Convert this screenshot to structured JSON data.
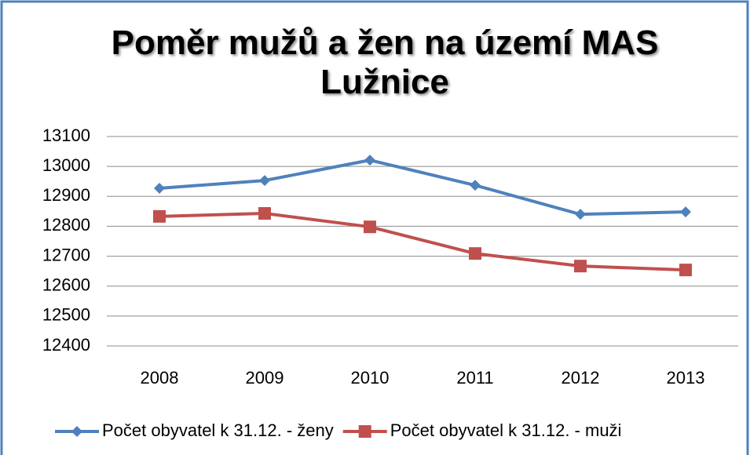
{
  "chart_data": {
    "type": "line",
    "title": "Poměr mužů a žen na území MAS Lužnice",
    "categories": [
      "2008",
      "2009",
      "2010",
      "2011",
      "2012",
      "2013"
    ],
    "series": [
      {
        "name": "Počet obyvatel k 31.12. - ženy",
        "color": "#4f81bd",
        "marker": "diamond",
        "values": [
          12927,
          12953,
          13021,
          12937,
          12840,
          12848
        ]
      },
      {
        "name": "Počet obyvatel k 31.12. - muži",
        "color": "#c0504d",
        "marker": "square",
        "values": [
          12833,
          12843,
          12798,
          12709,
          12667,
          12654
        ]
      }
    ],
    "ylim": [
      12400,
      13100
    ],
    "yticks": [
      12400,
      12500,
      12600,
      12700,
      12800,
      12900,
      13000,
      13100
    ],
    "grid": true,
    "legend": "bottom"
  }
}
